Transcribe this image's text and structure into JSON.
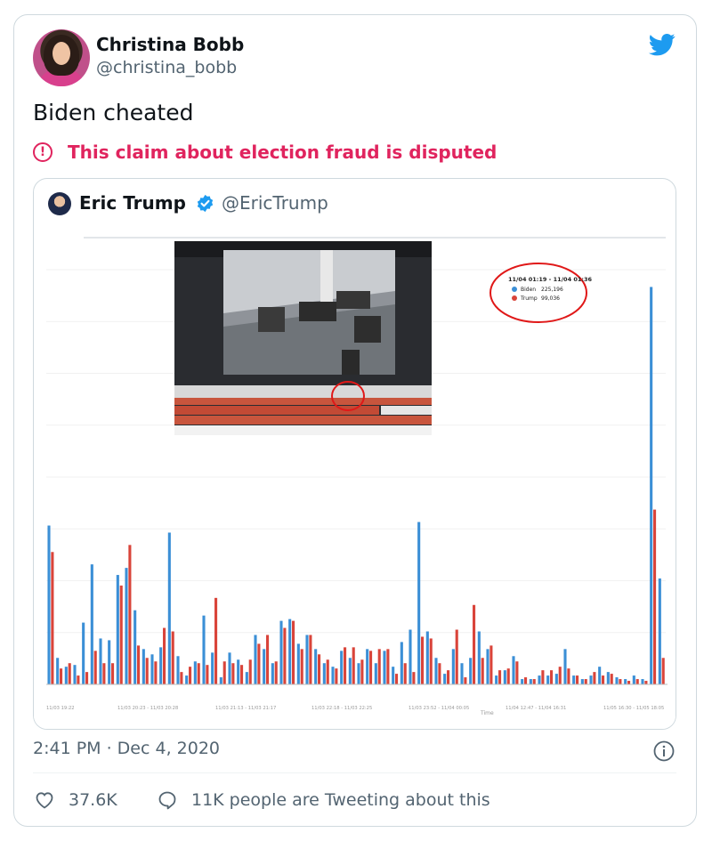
{
  "tweet": {
    "author_name": "Christina Bobb",
    "author_handle": "@christina_bobb",
    "text": "Biden cheated",
    "notice": "This claim about election fraud is disputed",
    "timestamp": "2:41 PM · Dec 4, 2020",
    "likes": "37.6K",
    "talking": "11K people are Tweeting about this"
  },
  "quoted": {
    "author_name": "Eric Trump",
    "author_handle": "@EricTrump"
  },
  "colors": {
    "biden": "#3b8fd6",
    "trump": "#d9443a",
    "notice": "#e0245e",
    "twitter_blue": "#1d9bf0"
  },
  "icons": {
    "brand": "twitter-bird-icon",
    "notice": "exclamation-circle-icon",
    "info": "info-icon",
    "like": "heart-icon",
    "talk": "speech-bubble-icon",
    "verified": "verified-badge-icon"
  },
  "chart_data": {
    "type": "bar",
    "x_tick_labels": [
      "11/03 19:22",
      "11/03 20:23 - 11/03 20:28",
      "11/03 21:13 - 11/03 21:17",
      "11/03 22:18 - 11/03 22:25",
      "11/03 23:52 - 11/04 00:05",
      "11/04 12:47 - 11/04 16:31",
      "11/05 16:30 - 11/05 18:05"
    ],
    "xlabel": "Time",
    "tooltip": {
      "range": "11/04 01:19 - 11/04 01:36",
      "biden_label": "Biden",
      "biden_value": "225,196",
      "trump_label": "Trump",
      "trump_value": "99,036"
    },
    "ylim": [
      0,
      235000
    ],
    "series": [
      {
        "name": "Biden",
        "values": [
          90000,
          15000,
          10000,
          11000,
          35000,
          68000,
          26000,
          25000,
          62000,
          66000,
          42000,
          20000,
          17000,
          21000,
          86000,
          16000,
          5000,
          13000,
          39000,
          18000,
          4000,
          18000,
          14000,
          7000,
          28000,
          20000,
          12000,
          36000,
          37000,
          23000,
          28000,
          20000,
          12000,
          10000,
          19000,
          15000,
          12000,
          20000,
          12000,
          19000,
          10000,
          24000,
          31000,
          92000,
          30000,
          15000,
          6000,
          20000,
          12000,
          15000,
          30000,
          20000,
          5000,
          8000,
          16000,
          3000,
          3000,
          5000,
          5000,
          6000,
          20000,
          5000,
          3000,
          5000,
          10000,
          7000,
          4000,
          3000,
          5000,
          3000,
          225196,
          60000
        ]
      },
      {
        "name": "Trump",
        "values": [
          75000,
          9000,
          12000,
          5000,
          7000,
          19000,
          12000,
          12000,
          56000,
          79000,
          22000,
          15000,
          13000,
          32000,
          30000,
          7000,
          10000,
          12000,
          11000,
          49000,
          13000,
          12000,
          11000,
          14000,
          23000,
          28000,
          13000,
          32000,
          36000,
          20000,
          28000,
          17000,
          14000,
          9000,
          21000,
          21000,
          14000,
          19000,
          20000,
          20000,
          6000,
          12000,
          7000,
          27000,
          26000,
          12000,
          8000,
          31000,
          4000,
          45000,
          15000,
          22000,
          8000,
          9000,
          13000,
          4000,
          3000,
          8000,
          8000,
          10000,
          9000,
          5000,
          3000,
          7000,
          5000,
          6000,
          3000,
          2000,
          3000,
          2000,
          99036,
          15000
        ]
      }
    ]
  }
}
